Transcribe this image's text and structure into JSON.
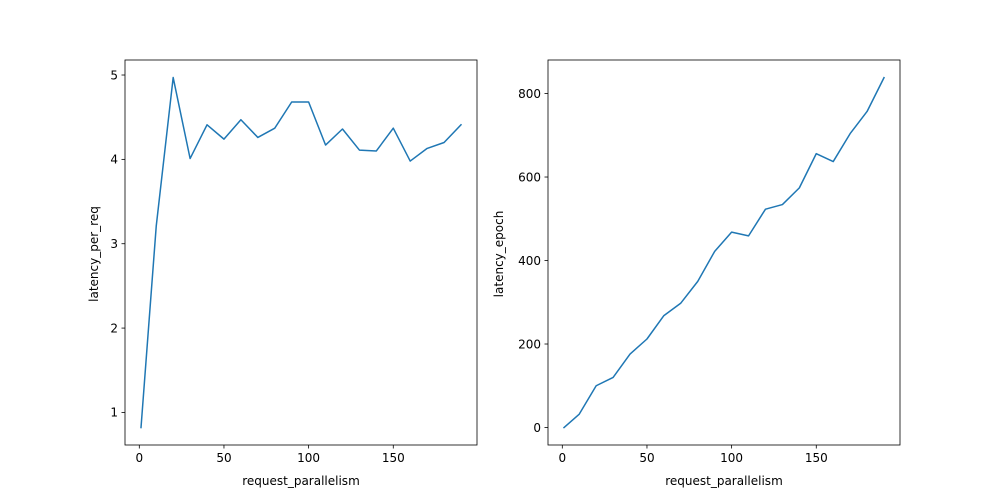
{
  "chart_data": [
    {
      "type": "line",
      "title": "",
      "xlabel": "request_parallelism",
      "ylabel": "latency_per_req",
      "xlim": [
        -8.45,
        199.45
      ],
      "ylim": [
        0.614,
        5.178
      ],
      "xticks": [
        0,
        50,
        100,
        150
      ],
      "yticks": [
        1,
        2,
        3,
        4,
        5
      ],
      "grid": false,
      "series": [
        {
          "color": "#1f77b4",
          "x": [
            1,
            10,
            20,
            30,
            40,
            50,
            60,
            70,
            80,
            90,
            100,
            110,
            120,
            130,
            140,
            150,
            160,
            170,
            180,
            190
          ],
          "y": [
            0.82,
            3.21,
            4.97,
            4.01,
            4.41,
            4.24,
            4.47,
            4.26,
            4.37,
            4.68,
            4.68,
            4.17,
            4.36,
            4.11,
            4.1,
            4.37,
            3.98,
            4.13,
            4.2,
            4.41
          ]
        }
      ]
    },
    {
      "type": "line",
      "title": "",
      "xlabel": "request_parallelism",
      "ylabel": "latency_epoch",
      "xlim": [
        -8.45,
        199.45
      ],
      "ylim": [
        -41.9,
        880.3
      ],
      "xticks": [
        0,
        50,
        100,
        150
      ],
      "yticks": [
        0,
        200,
        400,
        600,
        800
      ],
      "grid": false,
      "series": [
        {
          "color": "#1f77b4",
          "x": [
            1,
            10,
            20,
            30,
            40,
            50,
            60,
            70,
            80,
            90,
            100,
            110,
            120,
            130,
            140,
            150,
            160,
            170,
            180,
            190
          ],
          "y": [
            0,
            32,
            100,
            120,
            176,
            212,
            268,
            298,
            350,
            422,
            468,
            459,
            523,
            534,
            574,
            656,
            637,
            704,
            757,
            838
          ]
        }
      ]
    }
  ]
}
